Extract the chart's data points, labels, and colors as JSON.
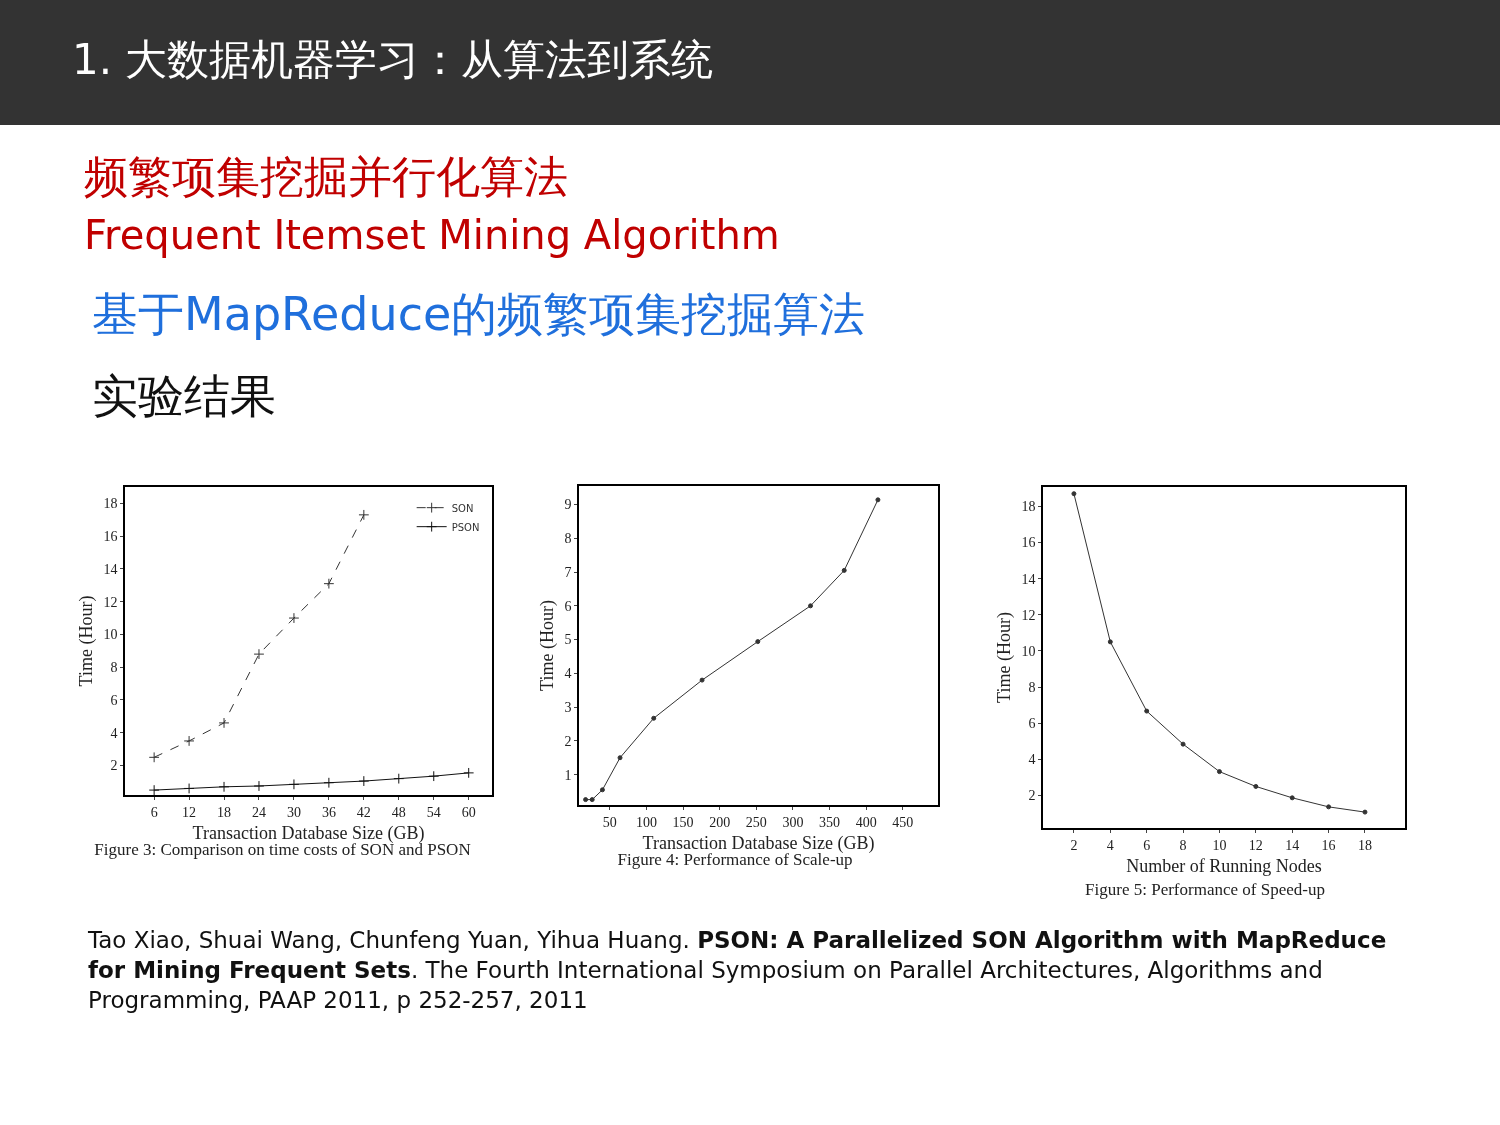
{
  "chart_data": [
    {
      "type": "line",
      "title": "Figure 3: Comparison on time costs of SON and PSON",
      "xlabel": "Transaction Database Size (GB)",
      "ylabel": "Time (Hour)",
      "annotations": [
        "1. 大数据机器学习：从算法到系统",
        "频繁项集挖掘并行化算法",
        "Frequent Itemset Mining Algorithm",
        "基于MapReduce的频繁项集挖掘算法",
        "实验结果",
        "Tao Xiao, Shuai Wang, Chunfeng Yuan, Yihua Huang. ",
        "PSON: A Parallelized SON Algorithm with MapReduce for Mining Frequent Sets",
        ". The Fourth International Symposium on Parallel Architectures, Algorithms and Programming, PAAP 2011, p 252-257, 2011"
      ],
      "x": [
        6,
        12,
        18,
        24,
        30,
        36,
        42,
        48,
        54,
        60
      ],
      "series": [
        {
          "name": "SON",
          "color": "#333333",
          "line_style": "dashed",
          "values": [
            2.5,
            3.5,
            4.6,
            8.8,
            11,
            13.1,
            17.3,
            null,
            null,
            null
          ]
        },
        {
          "name": "PSON",
          "color": "#111111",
          "line_style": "solid",
          "values": [
            0.5,
            0.6,
            0.7,
            0.75,
            0.85,
            0.95,
            1.05,
            1.2,
            1.35,
            1.55
          ]
        }
      ],
      "xlim": [
        1,
        64
      ],
      "xticks": [
        6,
        12,
        18,
        24,
        30,
        36,
        42,
        48,
        54,
        60
      ],
      "ylim": [
        0.2,
        19
      ],
      "yticks": [
        2,
        4,
        6,
        8,
        10,
        12,
        14,
        16,
        18
      ],
      "grid": false,
      "legend": "top right",
      "marker": "cross"
    },
    {
      "type": "line",
      "title": "Figure 4: Performance of Scale-up",
      "xlabel": "Transaction Database Size (GB)",
      "ylabel": "Time (Hour)",
      "x": [
        17,
        26,
        40,
        64,
        110,
        176,
        252,
        324,
        370,
        416
      ],
      "series": [
        {
          "color": "#333333",
          "values": [
            0.26,
            0.26,
            0.55,
            1.5,
            2.67,
            3.8,
            4.94,
            6.0,
            7.05,
            9.14
          ]
        }
      ],
      "xlim": [
        8,
        498
      ],
      "xticks": [
        50,
        100,
        150,
        200,
        250,
        300,
        350,
        400,
        450
      ],
      "ylim": [
        0.1,
        9.55
      ],
      "yticks": [
        1,
        2,
        3,
        4,
        5,
        6,
        7,
        8,
        9
      ],
      "grid": false,
      "legend": false,
      "marker": "circle"
    },
    {
      "type": "line",
      "title": "Figure 5: Performance of Speed-up",
      "xlabel": "Number of Running Nodes",
      "ylabel": "Time (Hour)",
      "x": [
        2,
        4,
        6,
        8,
        10,
        12,
        14,
        16,
        18
      ],
      "series": [
        {
          "color": "#333333",
          "values": [
            18.7,
            10.5,
            6.67,
            4.84,
            3.32,
            2.5,
            1.87,
            1.37,
            1.08
          ]
        }
      ],
      "xlim": [
        0.3,
        20.2
      ],
      "xticks": [
        2,
        4,
        6,
        8,
        10,
        12,
        14,
        16,
        18
      ],
      "ylim": [
        0.2,
        19.07
      ],
      "yticks": [
        2,
        4,
        6,
        8,
        10,
        12,
        14,
        16,
        18
      ],
      "grid": false,
      "legend": false,
      "marker": "circle"
    }
  ]
}
